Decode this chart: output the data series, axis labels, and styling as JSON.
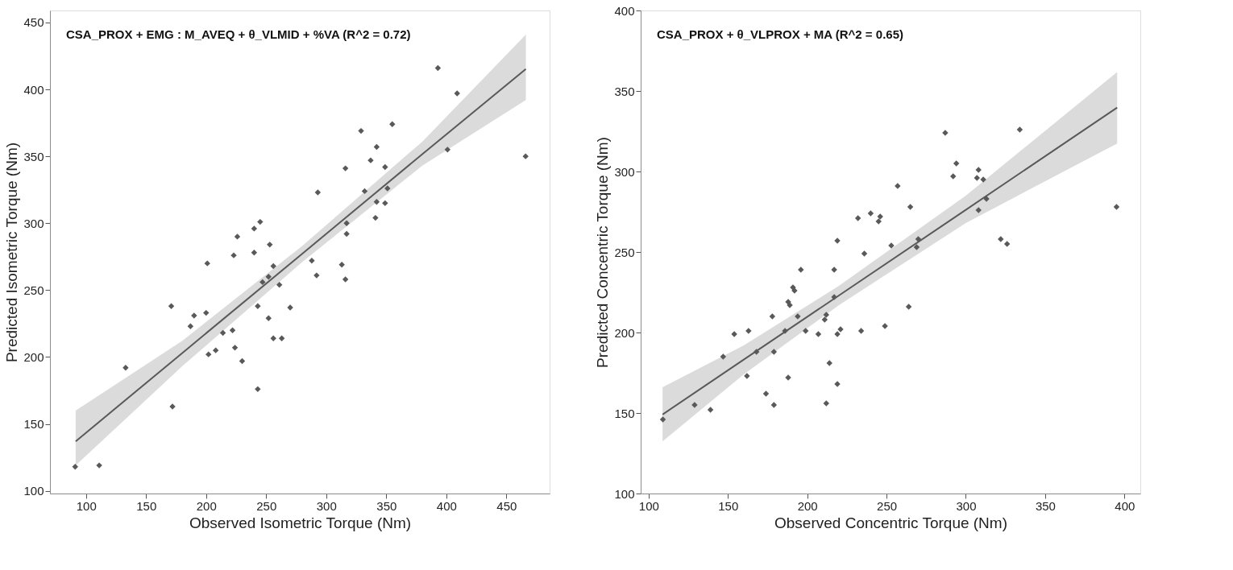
{
  "chart_data": [
    {
      "type": "scatter",
      "xlabel": "Observed Isometric Torque (Nm)",
      "ylabel": "Predicted Isometric Torque (Nm)",
      "annotations": [
        "CSA_PROX + EMG : M_AVEQ + θ_VLMID + %VA   (R^2 = 0.72)"
      ],
      "xlim": [
        70,
        486
      ],
      "ylim": [
        98,
        459
      ],
      "xticks": [
        100,
        150,
        200,
        250,
        300,
        350,
        400,
        450
      ],
      "yticks": [
        100,
        150,
        200,
        250,
        300,
        350,
        400,
        450
      ],
      "grid": false,
      "marker": "diamond",
      "series": [
        {
          "color": "#595959",
          "x": [
            91,
            111,
            133,
            172,
            171,
            187,
            190,
            200,
            201,
            202,
            208,
            214,
            222,
            224,
            230,
            223,
            226,
            240,
            240,
            243,
            243,
            247,
            252,
            252,
            253,
            256,
            256,
            261,
            263,
            270,
            288,
            292,
            313,
            316,
            317,
            317,
            245,
            316,
            293,
            393,
            409,
            355,
            329,
            342,
            337,
            349,
            401,
            466,
            332,
            351,
            342,
            349,
            341
          ],
          "values": [
            118,
            119,
            192,
            163,
            238,
            223,
            231,
            233,
            270,
            202,
            205,
            218,
            220,
            207,
            197,
            276,
            290,
            296,
            278,
            238,
            176,
            256,
            260,
            229,
            284,
            268,
            214,
            254,
            214,
            237,
            272,
            261,
            269,
            258,
            292,
            300,
            301,
            341,
            323,
            416,
            397,
            374,
            369,
            357,
            347,
            342,
            355,
            350,
            324,
            326,
            316,
            315,
            304
          ]
        },
        {
          "type": "line",
          "color": "#595959",
          "line_style": "solid",
          "marker": "none",
          "x": [
            91.4,
            180,
            280,
            380,
            466.2
          ],
          "values": [
            137,
            202.9,
            277.2,
            351.6,
            415.2
          ],
          "lower": [
            119,
            193,
            271,
            343,
            392
          ],
          "upper": [
            160,
            212,
            283,
            361,
            441
          ]
        }
      ]
    },
    {
      "type": "scatter",
      "xlabel": "Observed Concentric Torque (Nm)",
      "ylabel": "Predicted Concentric Torque (Nm)",
      "annotations": [
        "CSA_PROX + θ_VLPROX + MA   (R^2 = 0.65)"
      ],
      "xlim": [
        95,
        410
      ],
      "ylim": [
        100,
        400
      ],
      "xticks": [
        100,
        150,
        200,
        250,
        300,
        350,
        400
      ],
      "yticks": [
        100,
        150,
        200,
        250,
        300,
        350,
        400
      ],
      "grid": false,
      "marker": "diamond",
      "series": [
        {
          "color": "#595959",
          "x": [
            109,
            129,
            139,
            147,
            154,
            163,
            162,
            168,
            174,
            179,
            178,
            179,
            186,
            188,
            188,
            189,
            191,
            192,
            194,
            196,
            199,
            207,
            211,
            212,
            212,
            214,
            217,
            217,
            219,
            219,
            219,
            221,
            234,
            236,
            232,
            240,
            246,
            245,
            249,
            253,
            257,
            265,
            264,
            270,
            269,
            287,
            294,
            292,
            308,
            307,
            311,
            313,
            308,
            322,
            326,
            334,
            395
          ],
          "values": [
            146,
            155,
            152,
            185,
            199,
            201,
            173,
            188,
            162,
            155,
            210,
            188,
            201,
            172,
            219,
            217,
            228,
            226,
            210,
            239,
            201,
            199,
            208,
            211,
            156,
            181,
            222,
            239,
            168,
            257,
            199,
            202,
            201,
            249,
            271,
            274,
            272,
            269,
            204,
            254,
            291,
            278,
            216,
            258,
            253,
            324,
            305,
            297,
            301,
            296,
            295,
            283,
            276,
            258,
            255,
            326,
            278
          ]
        },
        {
          "type": "line",
          "color": "#595959",
          "line_style": "solid",
          "marker": "none",
          "x": [
            108.8,
            160,
            220,
            300,
            395.4
          ],
          "values": [
            149.1,
            183.2,
            223,
            276.2,
            339.7
          ],
          "lower": [
            132.4,
            174,
            217,
            268,
            317.4
          ],
          "upper": [
            166,
            192,
            229,
            285,
            361.8
          ]
        }
      ]
    }
  ]
}
